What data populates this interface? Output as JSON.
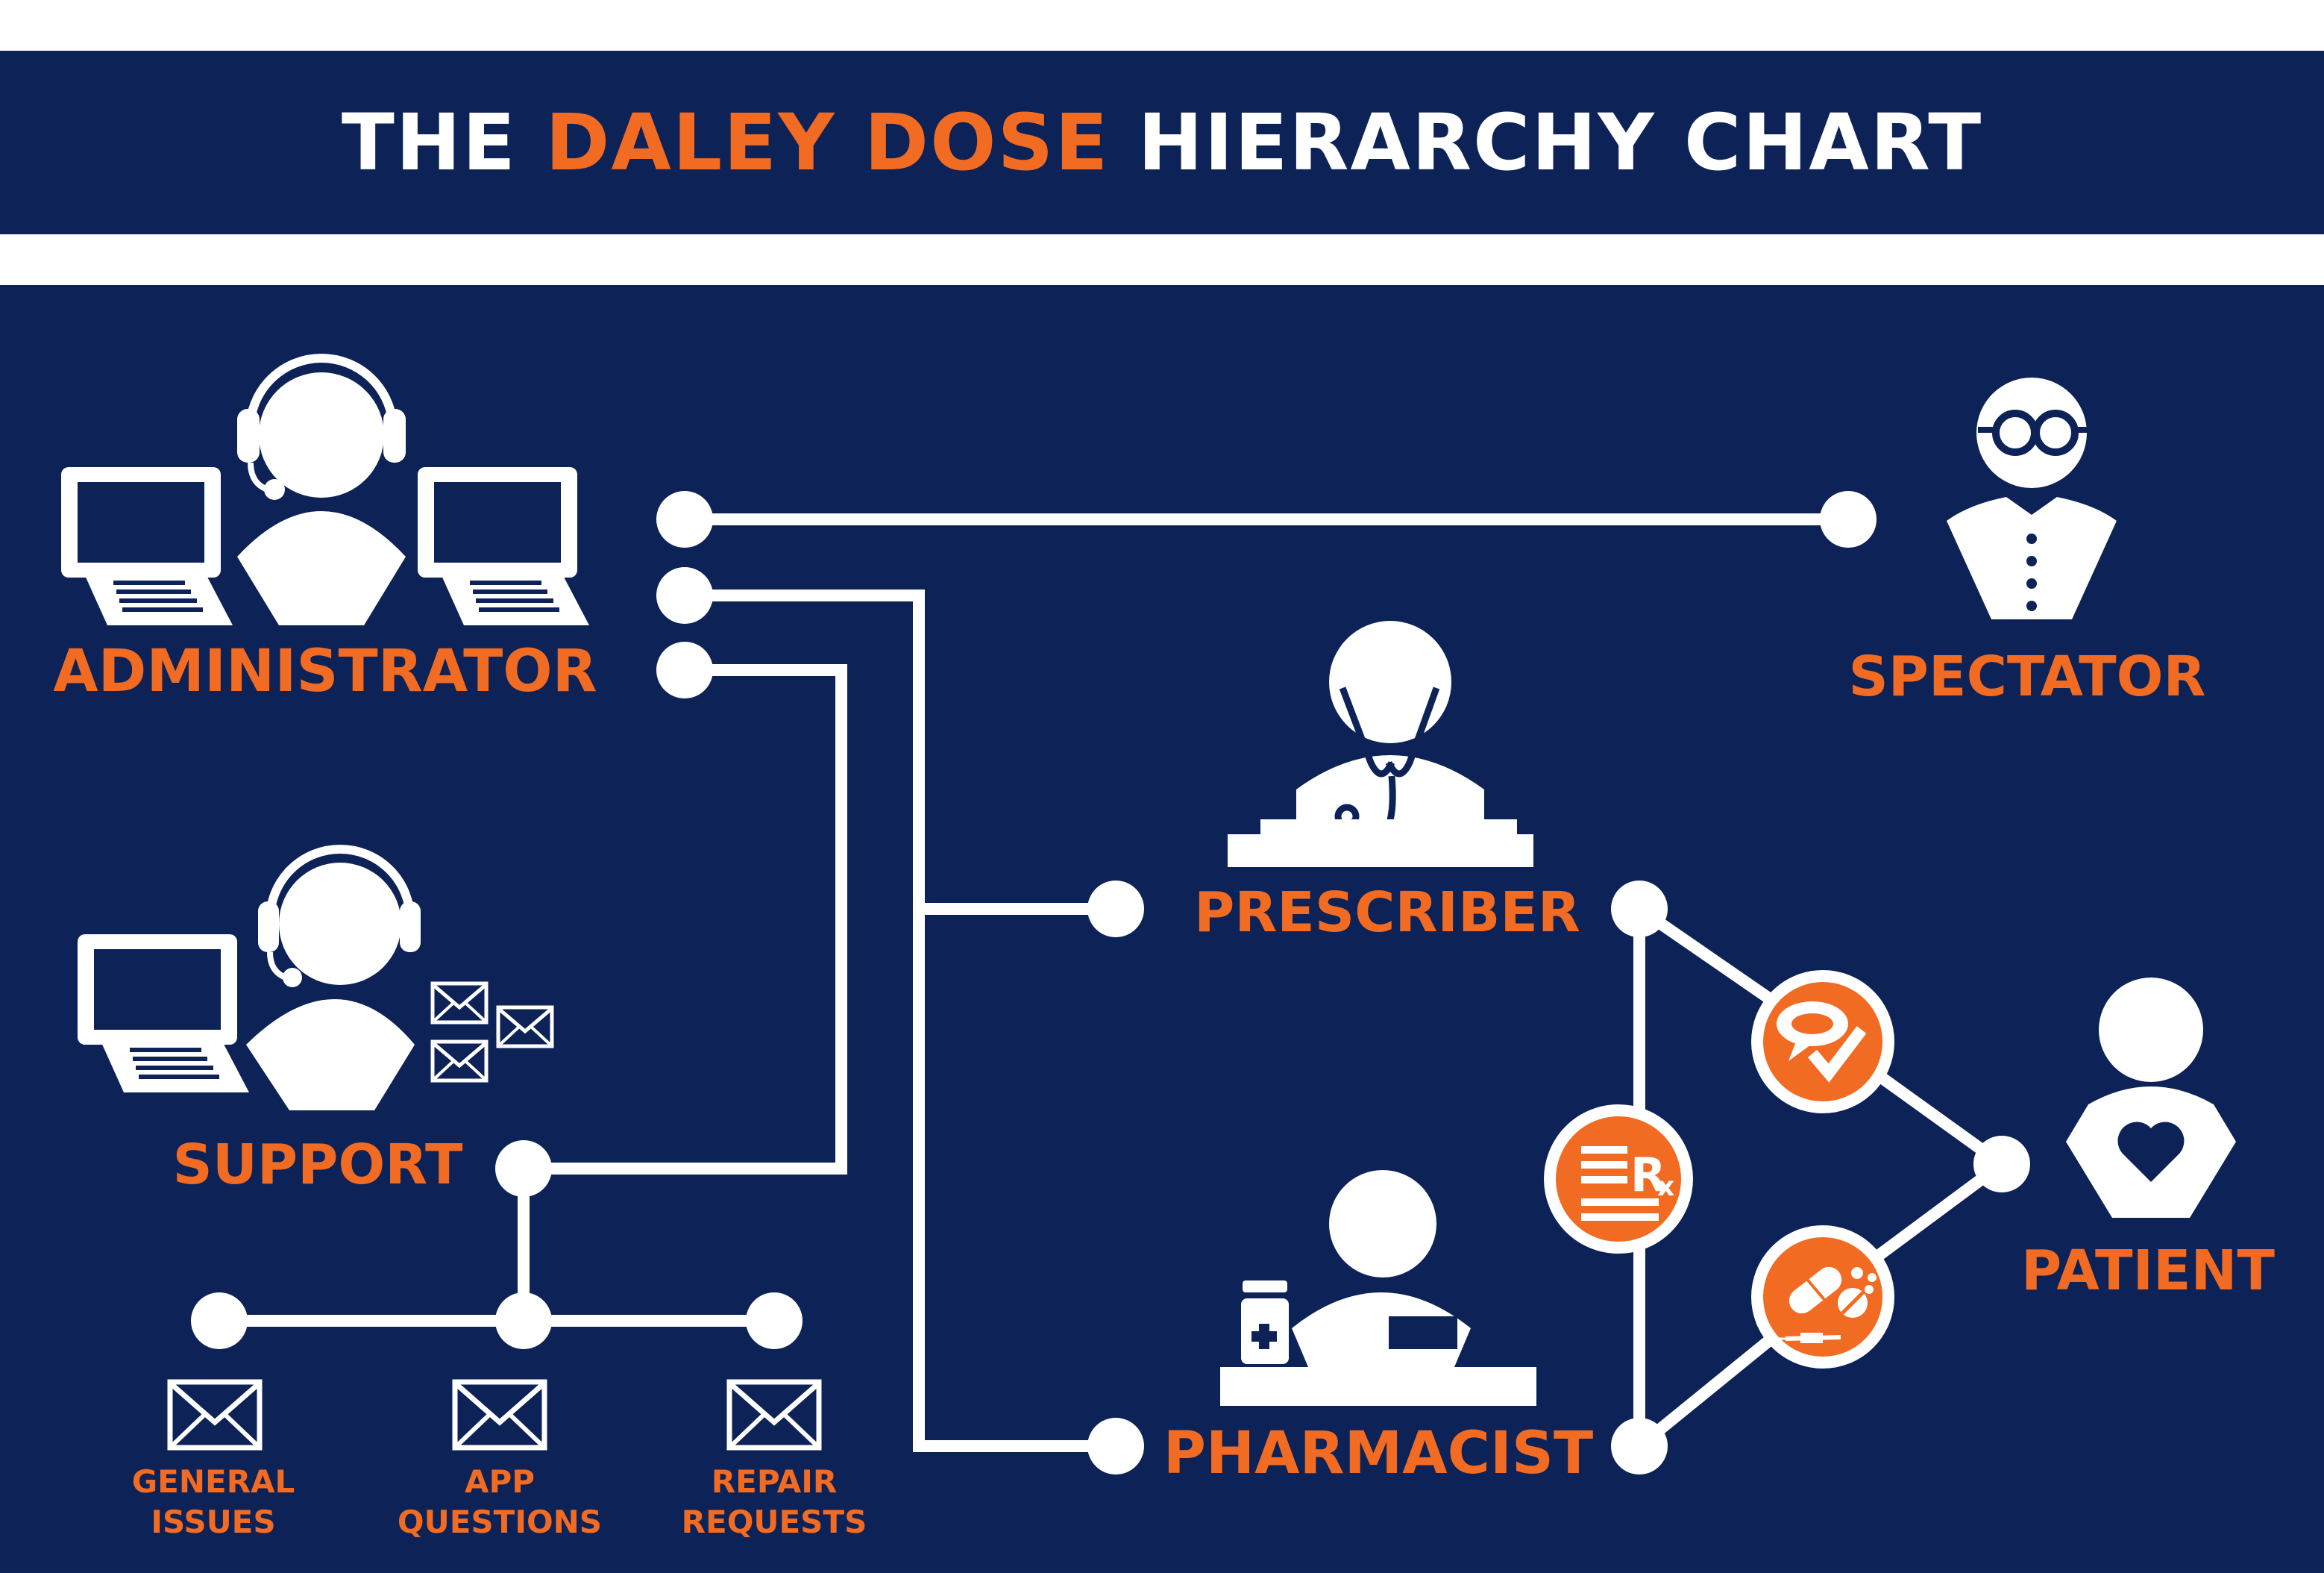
{
  "title": {
    "prefix": "THE ",
    "highlight": "DALEY DOSE",
    "suffix": " HIERARCHY CHART"
  },
  "colors": {
    "navy": "#0d2257",
    "orange": "#f26b22",
    "white": "#ffffff"
  },
  "roles": {
    "administrator": "ADMINISTRATOR",
    "spectator": "SPECTATOR",
    "prescriber": "PRESCRIBER",
    "support": "SUPPORT",
    "pharmacist": "PHARMACIST",
    "patient": "PATIENT"
  },
  "support_channels": [
    {
      "line1": "GENERAL",
      "line2": "ISSUES"
    },
    {
      "line1": "APP",
      "line2": "QUESTIONS"
    },
    {
      "line1": "REPAIR",
      "line2": "REQUESTS"
    }
  ],
  "badges": {
    "prescription": "R",
    "prescription_sub": "x"
  },
  "icons": [
    "headset-person-icon",
    "laptop-icon",
    "glasses-person-icon",
    "doctor-icon",
    "stethoscope-icon",
    "pharmacist-icon",
    "pill-bottle-icon",
    "envelope-icon",
    "chat-check-icon",
    "rx-document-icon",
    "pills-icon",
    "heart-person-icon"
  ]
}
